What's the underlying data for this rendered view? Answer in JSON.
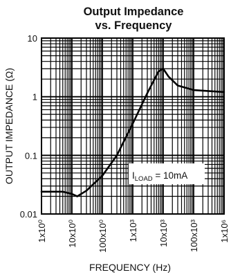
{
  "chart_data": {
    "type": "line",
    "title_lines": [
      "Output Impedance",
      "vs. Frequency"
    ],
    "xlabel": "FREQUENCY (Hz)",
    "ylabel": "OUTPUT IMPEDANCE (Ω)",
    "x_scale": "log",
    "y_scale": "log",
    "xlim": [
      1,
      1000000
    ],
    "ylim": [
      0.01,
      10
    ],
    "x_ticks": [
      {
        "value": 1,
        "label": "1x10⁰"
      },
      {
        "value": 10,
        "label": "10x10⁰"
      },
      {
        "value": 100,
        "label": "100x10⁰"
      },
      {
        "value": 1000,
        "label": "1x10³"
      },
      {
        "value": 10000,
        "label": "10x10³"
      },
      {
        "value": 100000,
        "label": "100x10³"
      },
      {
        "value": 1000000,
        "label": "1x10⁶"
      }
    ],
    "y_ticks": [
      {
        "value": 0.01,
        "label": "0.01"
      },
      {
        "value": 0.1,
        "label": "0.1"
      },
      {
        "value": 1,
        "label": "1"
      },
      {
        "value": 10,
        "label": "10"
      }
    ],
    "grid": true,
    "annotation": {
      "prefix": "I",
      "subscript": "LOAD",
      "suffix": " = 10mA"
    },
    "series": [
      {
        "x": [
          1,
          5,
          10,
          15,
          30,
          100,
          300,
          1000,
          3000,
          7000,
          10000,
          15000,
          30000,
          100000,
          1000000
        ],
        "y": [
          0.024,
          0.024,
          0.022,
          0.02,
          0.025,
          0.045,
          0.1,
          0.35,
          1.15,
          2.7,
          3.0,
          2.2,
          1.55,
          1.3,
          1.2
        ]
      }
    ],
    "colors": {
      "line": "#000000",
      "grid": "#000000",
      "background": "#ffffff"
    }
  }
}
